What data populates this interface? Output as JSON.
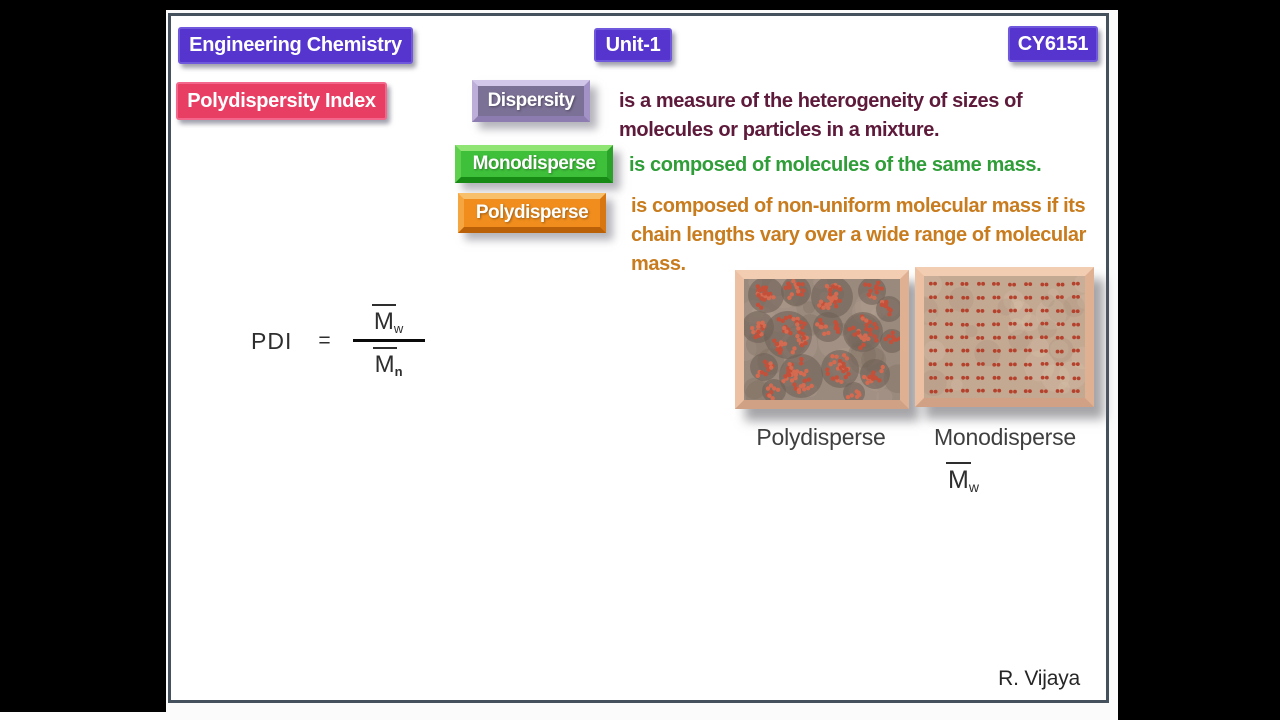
{
  "header": {
    "course": "Engineering Chemistry",
    "unit": "Unit-1",
    "code": "CY6151"
  },
  "title_badge": "Polydispersity Index",
  "terms": {
    "dispersity": {
      "label": "Dispersity",
      "definition": "is a measure of the heterogeneity of sizes of molecules or particles in a mixture."
    },
    "monodisperse": {
      "label": "Monodisperse",
      "definition": "is composed of molecules of the same mass."
    },
    "polydisperse": {
      "label": "Polydisperse",
      "definition": "is composed of non-uniform molecular mass if its chain lengths vary over a wide range of molecular mass."
    }
  },
  "formula": {
    "lhs": "PDI",
    "equals": "=",
    "numerator": {
      "base": "M",
      "sub": "w"
    },
    "denominator": {
      "base": "M",
      "sub": "n"
    }
  },
  "figures": {
    "left": {
      "caption": "Polydisperse"
    },
    "right": {
      "caption": "Monodisperse"
    },
    "annotation": {
      "base": "M",
      "sub": "w"
    }
  },
  "footer": {
    "author": "R. Vijaya"
  },
  "colors": {
    "badge-blue": "#5535cd",
    "badge-blue-border": "#6f58dc",
    "badge-pink": "#e83e63",
    "badge-pink-border": "#f2678b",
    "term-purple-face": "#7b7095",
    "term-green-face": "#3ec03a",
    "term-orange-face": "#f08d1d",
    "text-maroon": "#5e1a3a",
    "text-green": "#2f9e38",
    "text-orange": "#c87c1e",
    "slide-border": "#46515e",
    "caption-gray": "#3f3f3f",
    "poly-dot": "#c4503a",
    "poly-dot-light": "#d46a50",
    "poly-bg": "#9a8a7d",
    "poly-blob": "#70615600",
    "mono-dot": "#b5402c",
    "mono-bg": "#c3a892"
  }
}
